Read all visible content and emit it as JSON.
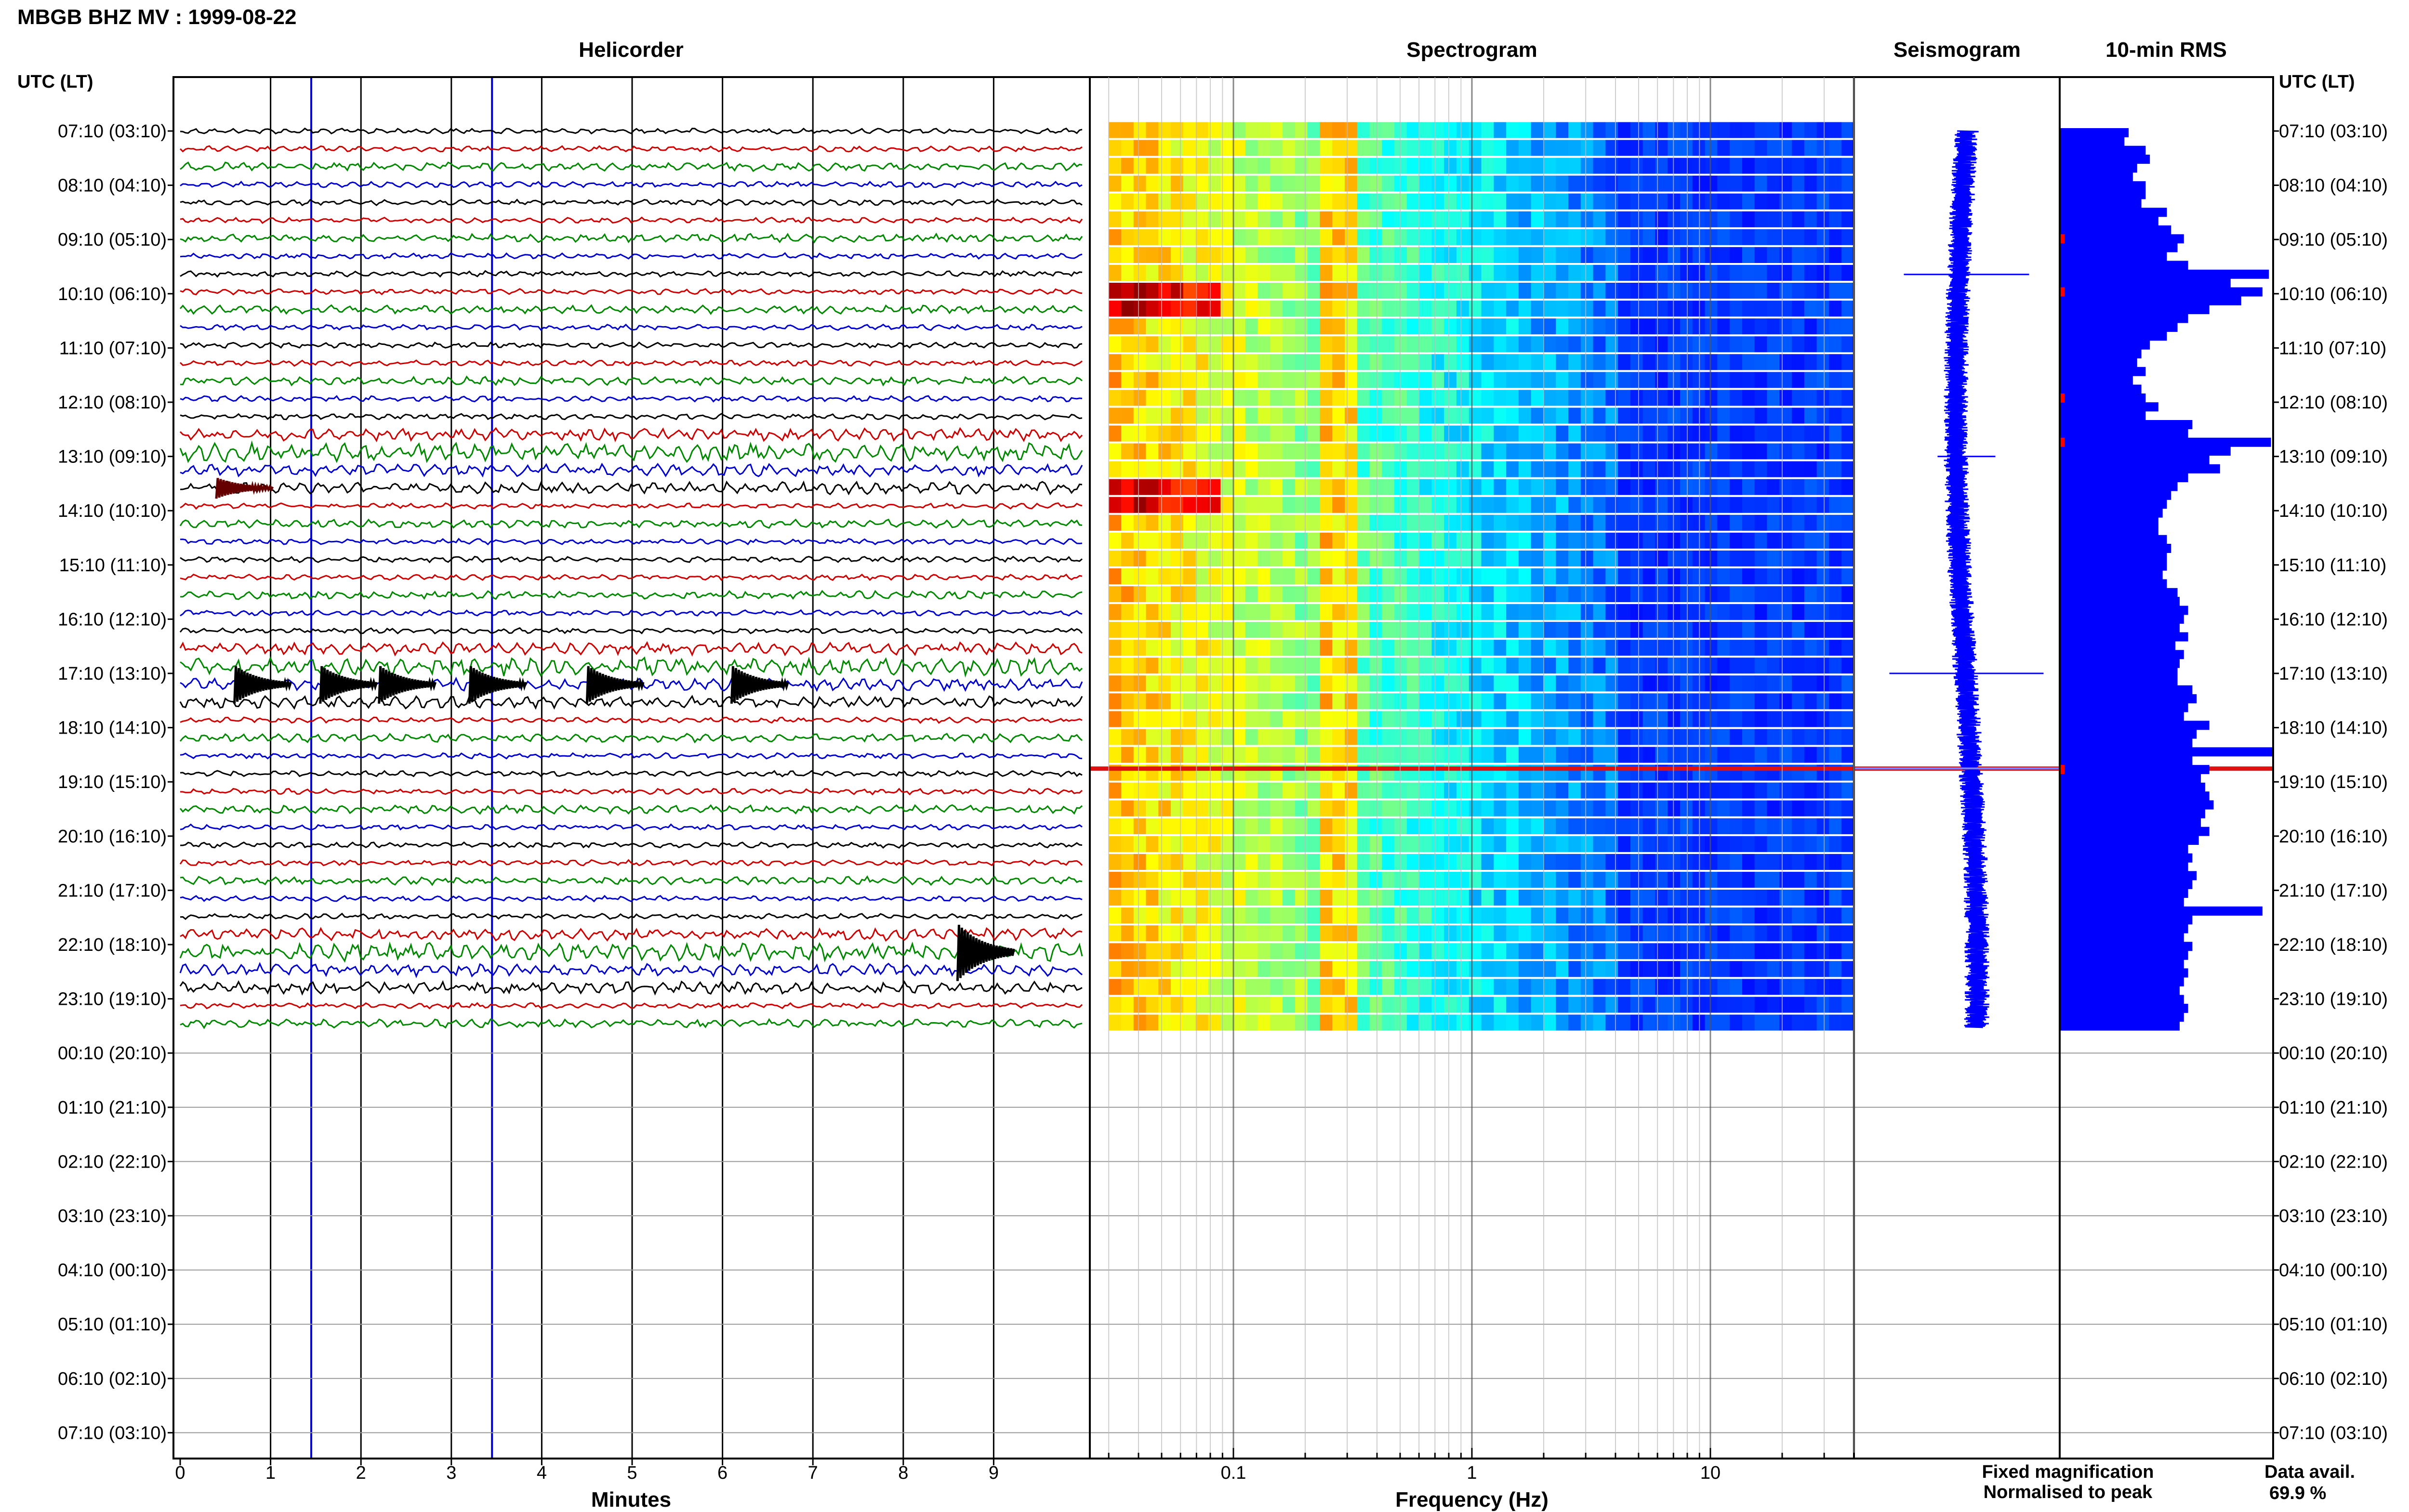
{
  "header": {
    "title": "MBGB BHZ MV : 1999-08-22"
  },
  "panels": {
    "helicorder": "Helicorder",
    "spectrogram": "Spectrogram",
    "seismogram": "Seismogram",
    "rms": "10-min RMS"
  },
  "axes": {
    "left_time_header": "UTC (LT)",
    "right_time_header": "UTC (LT)",
    "minutes_label": "Minutes",
    "frequency_label": "Frequency (Hz)",
    "minutes_ticks": [
      "0",
      "1",
      "2",
      "3",
      "4",
      "5",
      "6",
      "7",
      "8",
      "9"
    ],
    "frequency_ticks": [
      "0.1",
      "1",
      "10"
    ]
  },
  "legend": {
    "fixed": "Fixed magnification",
    "normalised": "Normalised to peak",
    "fixed_color": "#0000ff",
    "normalised_color": "#ff0000"
  },
  "availability": {
    "label": "Data avail.",
    "value": "69.9 %"
  },
  "chart_data": {
    "type": "heatmap",
    "title": "MBGB BHZ MV : 1999-08-22",
    "hour_labels": [
      "07:10 (03:10)",
      "08:10 (04:10)",
      "09:10 (05:10)",
      "10:10 (06:10)",
      "11:10 (07:10)",
      "12:10 (08:10)",
      "13:10 (09:10)",
      "14:10 (10:10)",
      "15:10 (11:10)",
      "16:10 (12:10)",
      "17:10 (13:10)",
      "18:10 (14:10)",
      "19:10 (15:10)",
      "20:10 (16:10)",
      "21:10 (17:10)",
      "22:10 (18:10)",
      "23:10 (19:10)",
      "00:10 (20:10)",
      "01:10 (21:10)",
      "02:10 (22:10)",
      "03:10 (23:10)",
      "04:10 (00:10)",
      "05:10 (01:10)",
      "06:10 (02:10)",
      "07:10 (03:10)"
    ],
    "helicorder": {
      "xlabel": "Minutes",
      "xlim": [
        0,
        10
      ],
      "trace_colors": [
        "#000000",
        "#cc0000",
        "#008800",
        "#0000cc"
      ],
      "traces_recorded": 51,
      "event_hours": [
        6.15,
        10.15,
        15.5
      ],
      "trigger_minutes": [
        1.45,
        3.45
      ]
    },
    "spectrogram": {
      "xlabel": "Frequency (Hz)",
      "xscale": "log",
      "xlim": [
        0.025,
        40
      ],
      "data_xlim": [
        0.03,
        40
      ],
      "colormap": "jet",
      "rows_recorded": 51
    },
    "seismogram": {
      "colors": {
        "fixed": "#0000ff",
        "normalised": "#ff0000"
      }
    },
    "rms_10min": {
      "units": "relative",
      "values": [
        0.32,
        0.3,
        0.4,
        0.42,
        0.36,
        0.34,
        0.4,
        0.4,
        0.38,
        0.5,
        0.46,
        0.52,
        0.58,
        0.55,
        0.5,
        0.6,
        0.98,
        0.8,
        0.95,
        0.85,
        0.7,
        0.6,
        0.55,
        0.5,
        0.42,
        0.38,
        0.36,
        0.4,
        0.34,
        0.38,
        0.4,
        0.46,
        0.4,
        0.62,
        0.6,
        0.99,
        0.8,
        0.7,
        0.75,
        0.6,
        0.55,
        0.52,
        0.5,
        0.48,
        0.46,
        0.46,
        0.5,
        0.52,
        0.5,
        0.5,
        0.48,
        0.5,
        0.55,
        0.56,
        0.6,
        0.58,
        0.56,
        0.6,
        0.54,
        0.58,
        0.56,
        0.55,
        0.55,
        0.62,
        0.64,
        0.6,
        0.58,
        0.7,
        0.64,
        0.62,
        1.0,
        0.62,
        0.7,
        0.66,
        0.68,
        0.7,
        0.72,
        0.68,
        0.66,
        0.7,
        0.65,
        0.6,
        0.62,
        0.6,
        0.64,
        0.62,
        0.6,
        0.58,
        0.95,
        0.62,
        0.6,
        0.58,
        0.62,
        0.6,
        0.58,
        0.6,
        0.58,
        0.56,
        0.58,
        0.6,
        0.58,
        0.56
      ],
      "normalised_marker_rows": [
        12,
        18,
        30,
        35,
        72
      ]
    },
    "data_availability_percent": 69.9
  }
}
